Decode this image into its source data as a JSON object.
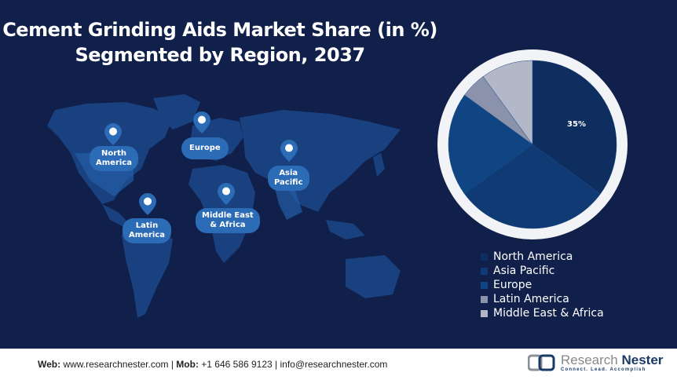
{
  "header": {
    "title_line1": "Cement Grinding Aids Market Share (in %)",
    "title_line2": "Segmented by Region, 2037"
  },
  "map": {
    "pins": [
      {
        "label_line1": "North",
        "label_line2": "America",
        "icon": "map-pin-icon"
      },
      {
        "label_line1": "Europe",
        "label_line2": "",
        "icon": "map-pin-icon"
      },
      {
        "label_line1": "Asia",
        "label_line2": "Pacific",
        "icon": "map-pin-icon"
      },
      {
        "label_line1": "Latin",
        "label_line2": "America",
        "icon": "map-pin-icon"
      },
      {
        "label_line1": "Middle East",
        "label_line2": "& Africa",
        "icon": "map-pin-icon"
      }
    ]
  },
  "chart_data": {
    "type": "pie",
    "title": "Cement Grinding Aids Market Share (in %) Segmented by Region, 2037",
    "categories": [
      "North America",
      "Asia Pacific",
      "Europe",
      "Latin America",
      "Middle East & Africa"
    ],
    "values": [
      35,
      30,
      20,
      5,
      10
    ],
    "colors": [
      "#0d2e5e",
      "#0f3a73",
      "#0f4583",
      "#8a93ab",
      "#b3b8c9"
    ],
    "data_labels": [
      "35%",
      "",
      "",
      "",
      ""
    ],
    "legend_position": "bottom-right"
  },
  "legend": {
    "items": [
      {
        "label": "North America",
        "color": "#0d2e5e"
      },
      {
        "label": "Asia Pacific",
        "color": "#0f3a73"
      },
      {
        "label": "Europe",
        "color": "#0f4583"
      },
      {
        "label": "Latin America",
        "color": "#8a93ab"
      },
      {
        "label": "Middle East & Africa",
        "color": "#b3b8c9"
      }
    ]
  },
  "footer": {
    "web_label": "Web:",
    "web_value": " www.researchnester.com | ",
    "mob_label": "Mob:",
    "mob_value": " +1 646 586 9123 | info@researchnester.com",
    "logo_name_light": "Research ",
    "logo_name_bold": "Nester",
    "logo_tagline": "Connect. Lead. Accomplish"
  }
}
